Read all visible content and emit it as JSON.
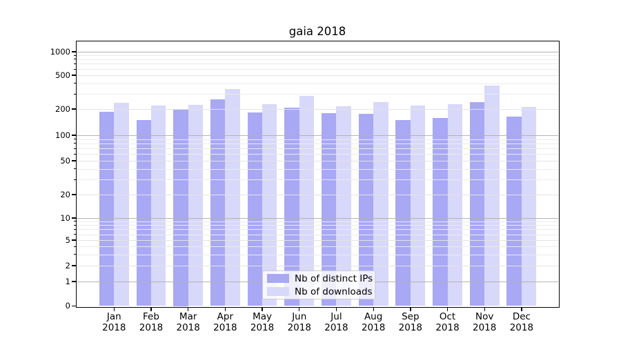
{
  "title": "gaia 2018",
  "chart_data": {
    "type": "bar",
    "title": "gaia 2018",
    "yscale": "symlog",
    "grid": "both",
    "legend_position": "lower center",
    "categories": [
      {
        "month": "Jan",
        "year": "2018"
      },
      {
        "month": "Feb",
        "year": "2018"
      },
      {
        "month": "Mar",
        "year": "2018"
      },
      {
        "month": "Apr",
        "year": "2018"
      },
      {
        "month": "May",
        "year": "2018"
      },
      {
        "month": "Jun",
        "year": "2018"
      },
      {
        "month": "Jul",
        "year": "2018"
      },
      {
        "month": "Aug",
        "year": "2018"
      },
      {
        "month": "Sep",
        "year": "2018"
      },
      {
        "month": "Oct",
        "year": "2018"
      },
      {
        "month": "Nov",
        "year": "2018"
      },
      {
        "month": "Dec",
        "year": "2018"
      }
    ],
    "series": [
      {
        "name": "Nb of distinct IPs",
        "color": "#a8a8f5",
        "values": [
          185,
          149,
          200,
          260,
          184,
          207,
          180,
          177,
          150,
          158,
          240,
          164
        ]
      },
      {
        "name": "Nb of downloads",
        "color": "#d8d8fa",
        "values": [
          237,
          219,
          224,
          345,
          228,
          285,
          215,
          240,
          220,
          226,
          378,
          213
        ]
      }
    ],
    "yticks": [
      0,
      1,
      2,
      5,
      10,
      20,
      50,
      100,
      200,
      500,
      1000
    ],
    "ylim": [
      0,
      1300
    ]
  },
  "colors": {
    "background": "#ffffff",
    "axis": "#000000",
    "major_gridline": "#b3b3b3",
    "labeled_minor_gridline": "#e3e3e3",
    "minor_gridline": "#ebebeb",
    "text": "#000000"
  }
}
